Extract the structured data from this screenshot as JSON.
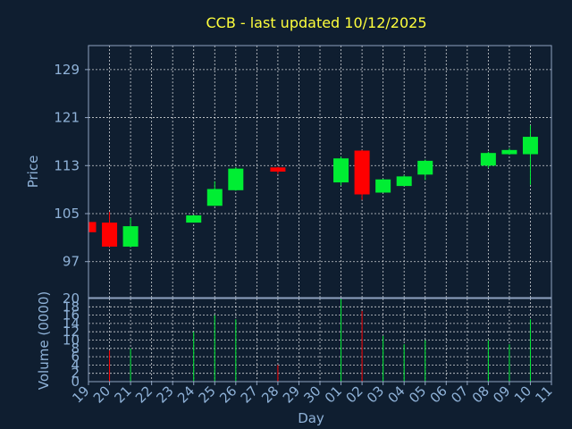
{
  "colors": {
    "background": "#0f1e30",
    "title": "#ffff3c",
    "axis_text": "#8fb2d8",
    "grid": "#ffffff",
    "up": "#00ee33",
    "down": "#ff0000",
    "frame": "#8fa3c0"
  },
  "chart_data": {
    "type": "candlestick",
    "title": "CCB - last updated 10/12/2025",
    "xlabel": "Day",
    "ylabel": "Price",
    "volume_ylabel": "Volume (0000)",
    "x_ticks": [
      "19",
      "20",
      "21",
      "22",
      "23",
      "24",
      "25",
      "26",
      "27",
      "28",
      "29",
      "30",
      "01",
      "02",
      "03",
      "04",
      "05",
      "06",
      "07",
      "08",
      "09",
      "10",
      "11"
    ],
    "y_ticks": [
      97,
      105,
      113,
      121,
      129
    ],
    "ylim": [
      91,
      133
    ],
    "volume_ticks": [
      0,
      2,
      4,
      6,
      8,
      10,
      12,
      14,
      16,
      18,
      20
    ],
    "volume_ylim": [
      0,
      20
    ],
    "grid": true,
    "candles": [
      {
        "day": "19",
        "open": 103.6,
        "high": 103.6,
        "low": 101.8,
        "close": 101.9,
        "volume": 0
      },
      {
        "day": "20",
        "open": 103.5,
        "high": 105.3,
        "low": 99.4,
        "close": 99.5,
        "volume": 7.5
      },
      {
        "day": "21",
        "open": 99.5,
        "high": 104.3,
        "low": 99.4,
        "close": 102.9,
        "volume": 8
      },
      {
        "day": "24",
        "open": 103.5,
        "high": 104.8,
        "low": 103.5,
        "close": 104.7,
        "volume": 12
      },
      {
        "day": "25",
        "open": 106.3,
        "high": 110.4,
        "low": 106.3,
        "close": 109.1,
        "volume": 16
      },
      {
        "day": "26",
        "open": 108.9,
        "high": 112.7,
        "low": 108.8,
        "close": 112.5,
        "volume": 15
      },
      {
        "day": "28",
        "open": 112.7,
        "high": 112.8,
        "low": 111.6,
        "close": 112.0,
        "volume": 4
      },
      {
        "day": "01",
        "open": 110.2,
        "high": 114.5,
        "low": 109.7,
        "close": 114.2,
        "volume": 20
      },
      {
        "day": "02",
        "open": 115.5,
        "high": 115.6,
        "low": 107.3,
        "close": 108.2,
        "volume": 17
      },
      {
        "day": "03",
        "open": 108.5,
        "high": 110.8,
        "low": 108.5,
        "close": 110.7,
        "volume": 11
      },
      {
        "day": "04",
        "open": 109.6,
        "high": 111.4,
        "low": 109.6,
        "close": 111.2,
        "volume": 9
      },
      {
        "day": "05",
        "open": 111.5,
        "high": 114.0,
        "low": 110.6,
        "close": 113.8,
        "volume": 10
      },
      {
        "day": "08",
        "open": 113.0,
        "high": 115.3,
        "low": 112.6,
        "close": 115.1,
        "volume": 10
      },
      {
        "day": "09",
        "open": 114.9,
        "high": 115.9,
        "low": 114.8,
        "close": 115.6,
        "volume": 9
      },
      {
        "day": "10",
        "open": 114.9,
        "high": 119.7,
        "low": 109.8,
        "close": 117.8,
        "volume": 15
      }
    ]
  }
}
